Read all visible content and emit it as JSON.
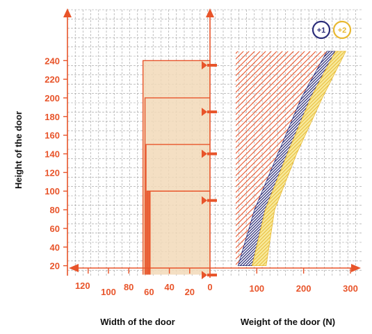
{
  "chart_data": {
    "type": "area",
    "title": "",
    "colors": {
      "accent": "#e8542a",
      "grid": "#9a9a9a",
      "frame_fill": "#f2d9b8",
      "band1": "#2b2d7a",
      "band2_fill": "#f7e99a",
      "band2_edge": "#e8b830",
      "text": "#111111"
    },
    "y_axis": {
      "label": "Height of the door",
      "range": [
        0,
        260
      ],
      "ticks": [
        "20",
        "40",
        "60",
        "80",
        "100",
        "120",
        "140",
        "160",
        "180",
        "200",
        "220",
        "240"
      ]
    },
    "width_axis": {
      "label": "Width of the door",
      "direction": "reversed",
      "range": [
        0,
        140
      ],
      "ticks": [
        "120",
        "100",
        "80",
        "60",
        "40",
        "20",
        "0"
      ]
    },
    "weight_axis": {
      "label": "Weight of the door (N)",
      "range": [
        0,
        320
      ],
      "ticks": [
        "0",
        "100",
        "200",
        "300"
      ]
    },
    "door_frames": [
      {
        "height": 240,
        "width": 66
      },
      {
        "height": 200,
        "width": 64
      },
      {
        "height": 150,
        "width": 63
      },
      {
        "height": 100,
        "width": 62
      },
      {
        "height": 100,
        "width": 61
      },
      {
        "height": 100,
        "width": 60
      },
      {
        "height": 100,
        "width": 59
      }
    ],
    "hinge_markers": [
      235,
      185,
      140,
      90,
      10
    ],
    "series": [
      {
        "name": "",
        "style": "red diagonal hatch",
        "x_left": [
          55,
          55,
          55,
          55,
          55
        ],
        "x_right": [
          60,
          95,
          145,
          195,
          250
        ],
        "y": [
          20,
          80,
          140,
          200,
          250
        ]
      },
      {
        "name": "+1",
        "style": "dark blue hatch",
        "x_left": [
          60,
          95,
          145,
          195,
          250
        ],
        "x_right": [
          90,
          118,
          165,
          215,
          268
        ],
        "y": [
          20,
          80,
          140,
          200,
          250
        ]
      },
      {
        "name": "+2",
        "style": "yellow hatch",
        "x_left": [
          90,
          118,
          165,
          215,
          268
        ],
        "x_right": [
          120,
          138,
          185,
          240,
          290
        ],
        "y": [
          20,
          80,
          140,
          200,
          250
        ]
      }
    ],
    "legend": {
      "placement": "top-right",
      "entries": [
        "+1",
        "+2"
      ]
    },
    "grid": true
  }
}
